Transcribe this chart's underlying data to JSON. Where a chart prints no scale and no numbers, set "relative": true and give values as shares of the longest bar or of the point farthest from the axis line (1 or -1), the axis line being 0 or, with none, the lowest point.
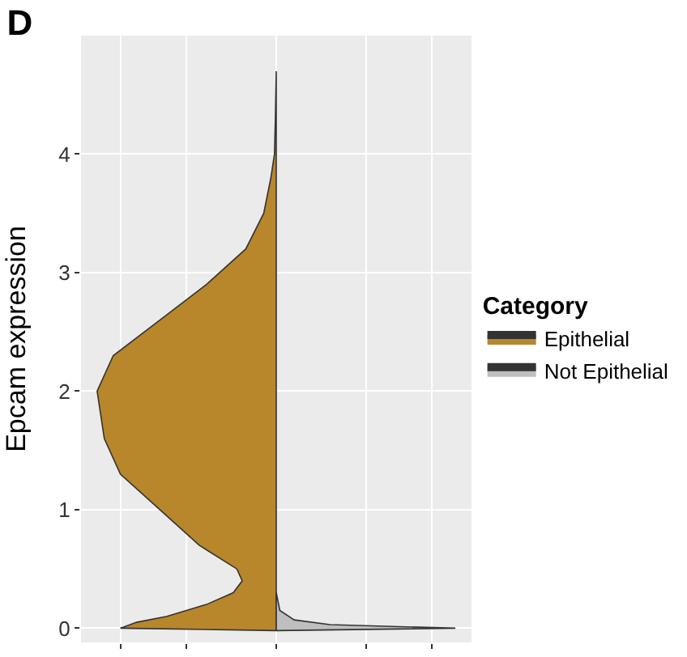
{
  "chart_data": {
    "type": "area",
    "orientation": "horizontal",
    "relative": true,
    "title": "D",
    "ylabel": "Epcam expression",
    "legend_title": "Category",
    "legend": "right",
    "grid": true,
    "ylim": [
      -0.12,
      5.0
    ],
    "yticks": [
      0,
      1,
      2,
      3,
      4
    ],
    "series": [
      {
        "name": "Epithelial",
        "color": "#b8862b",
        "x": [
          -0.02,
          0,
          0.05,
          0.1,
          0.2,
          0.3,
          0.4,
          0.5,
          0.7,
          1.0,
          1.3,
          1.6,
          2.0,
          2.3,
          2.6,
          2.9,
          3.2,
          3.5,
          3.8,
          4.0,
          4.3,
          4.7
        ],
        "values": [
          0,
          -0.87,
          -0.78,
          -0.61,
          -0.39,
          -0.24,
          -0.19,
          -0.22,
          -0.43,
          -0.65,
          -0.87,
          -0.96,
          -1.0,
          -0.91,
          -0.65,
          -0.39,
          -0.17,
          -0.07,
          -0.03,
          -0.01,
          -0.005,
          0
        ]
      },
      {
        "name": "Not Epithelial",
        "color": "#bfbfbf",
        "x": [
          -0.02,
          0,
          0.03,
          0.07,
          0.15,
          0.3
        ],
        "values": [
          0,
          1.0,
          0.3,
          0.1,
          0.02,
          0
        ]
      }
    ]
  }
}
